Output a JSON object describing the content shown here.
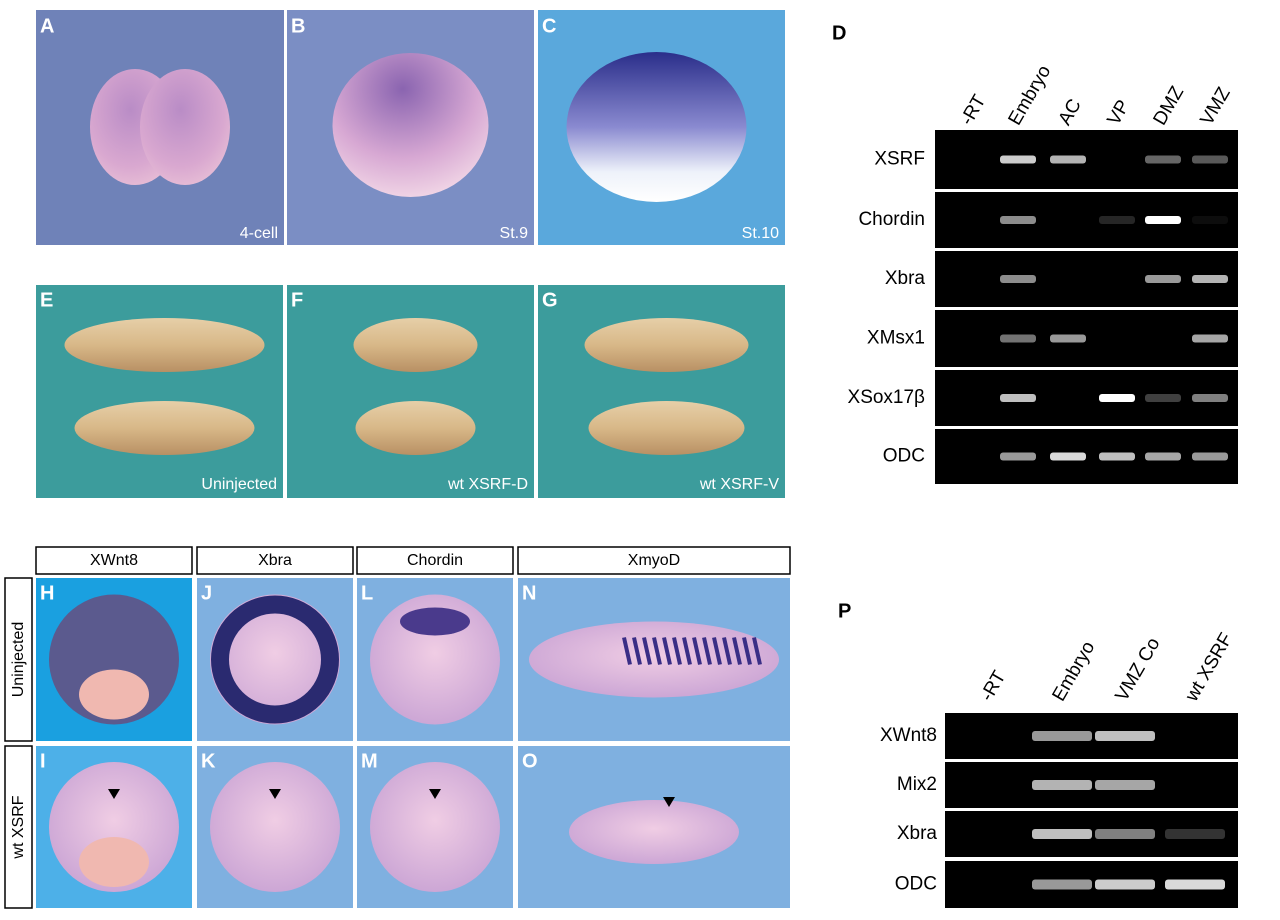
{
  "panels_top": [
    {
      "letter": "A",
      "caption": "4-cell"
    },
    {
      "letter": "B",
      "caption": "St.9"
    },
    {
      "letter": "C",
      "caption": "St.10"
    }
  ],
  "panels_mid": [
    {
      "letter": "E",
      "caption": "Uninjected"
    },
    {
      "letter": "F",
      "caption": "wt XSRF-D"
    },
    {
      "letter": "G",
      "caption": "wt XSRF-V"
    }
  ],
  "gel_d": {
    "letter": "D",
    "lanes": [
      "-RT",
      "Embryo",
      "AC",
      "VP",
      "DMZ",
      "VMZ"
    ],
    "genes": [
      "XSRF",
      "Chordin",
      "Xbra",
      "XMsx1",
      "XSox17β",
      "ODC"
    ]
  },
  "bottom": {
    "columns": [
      "XWnt8",
      "Xbra",
      "Chordin",
      "XmyoD"
    ],
    "rows": [
      "Uninjected",
      "wt XSRF"
    ],
    "letters": [
      [
        "H",
        "J",
        "L",
        "N"
      ],
      [
        "I",
        "K",
        "M",
        "O"
      ]
    ]
  },
  "gel_p": {
    "letter": "P",
    "lanes": [
      "-RT",
      "Embryo",
      "VMZ Co",
      "wt XSRF"
    ],
    "genes": [
      "XWnt8",
      "Mix2",
      "Xbra",
      "ODC"
    ]
  }
}
